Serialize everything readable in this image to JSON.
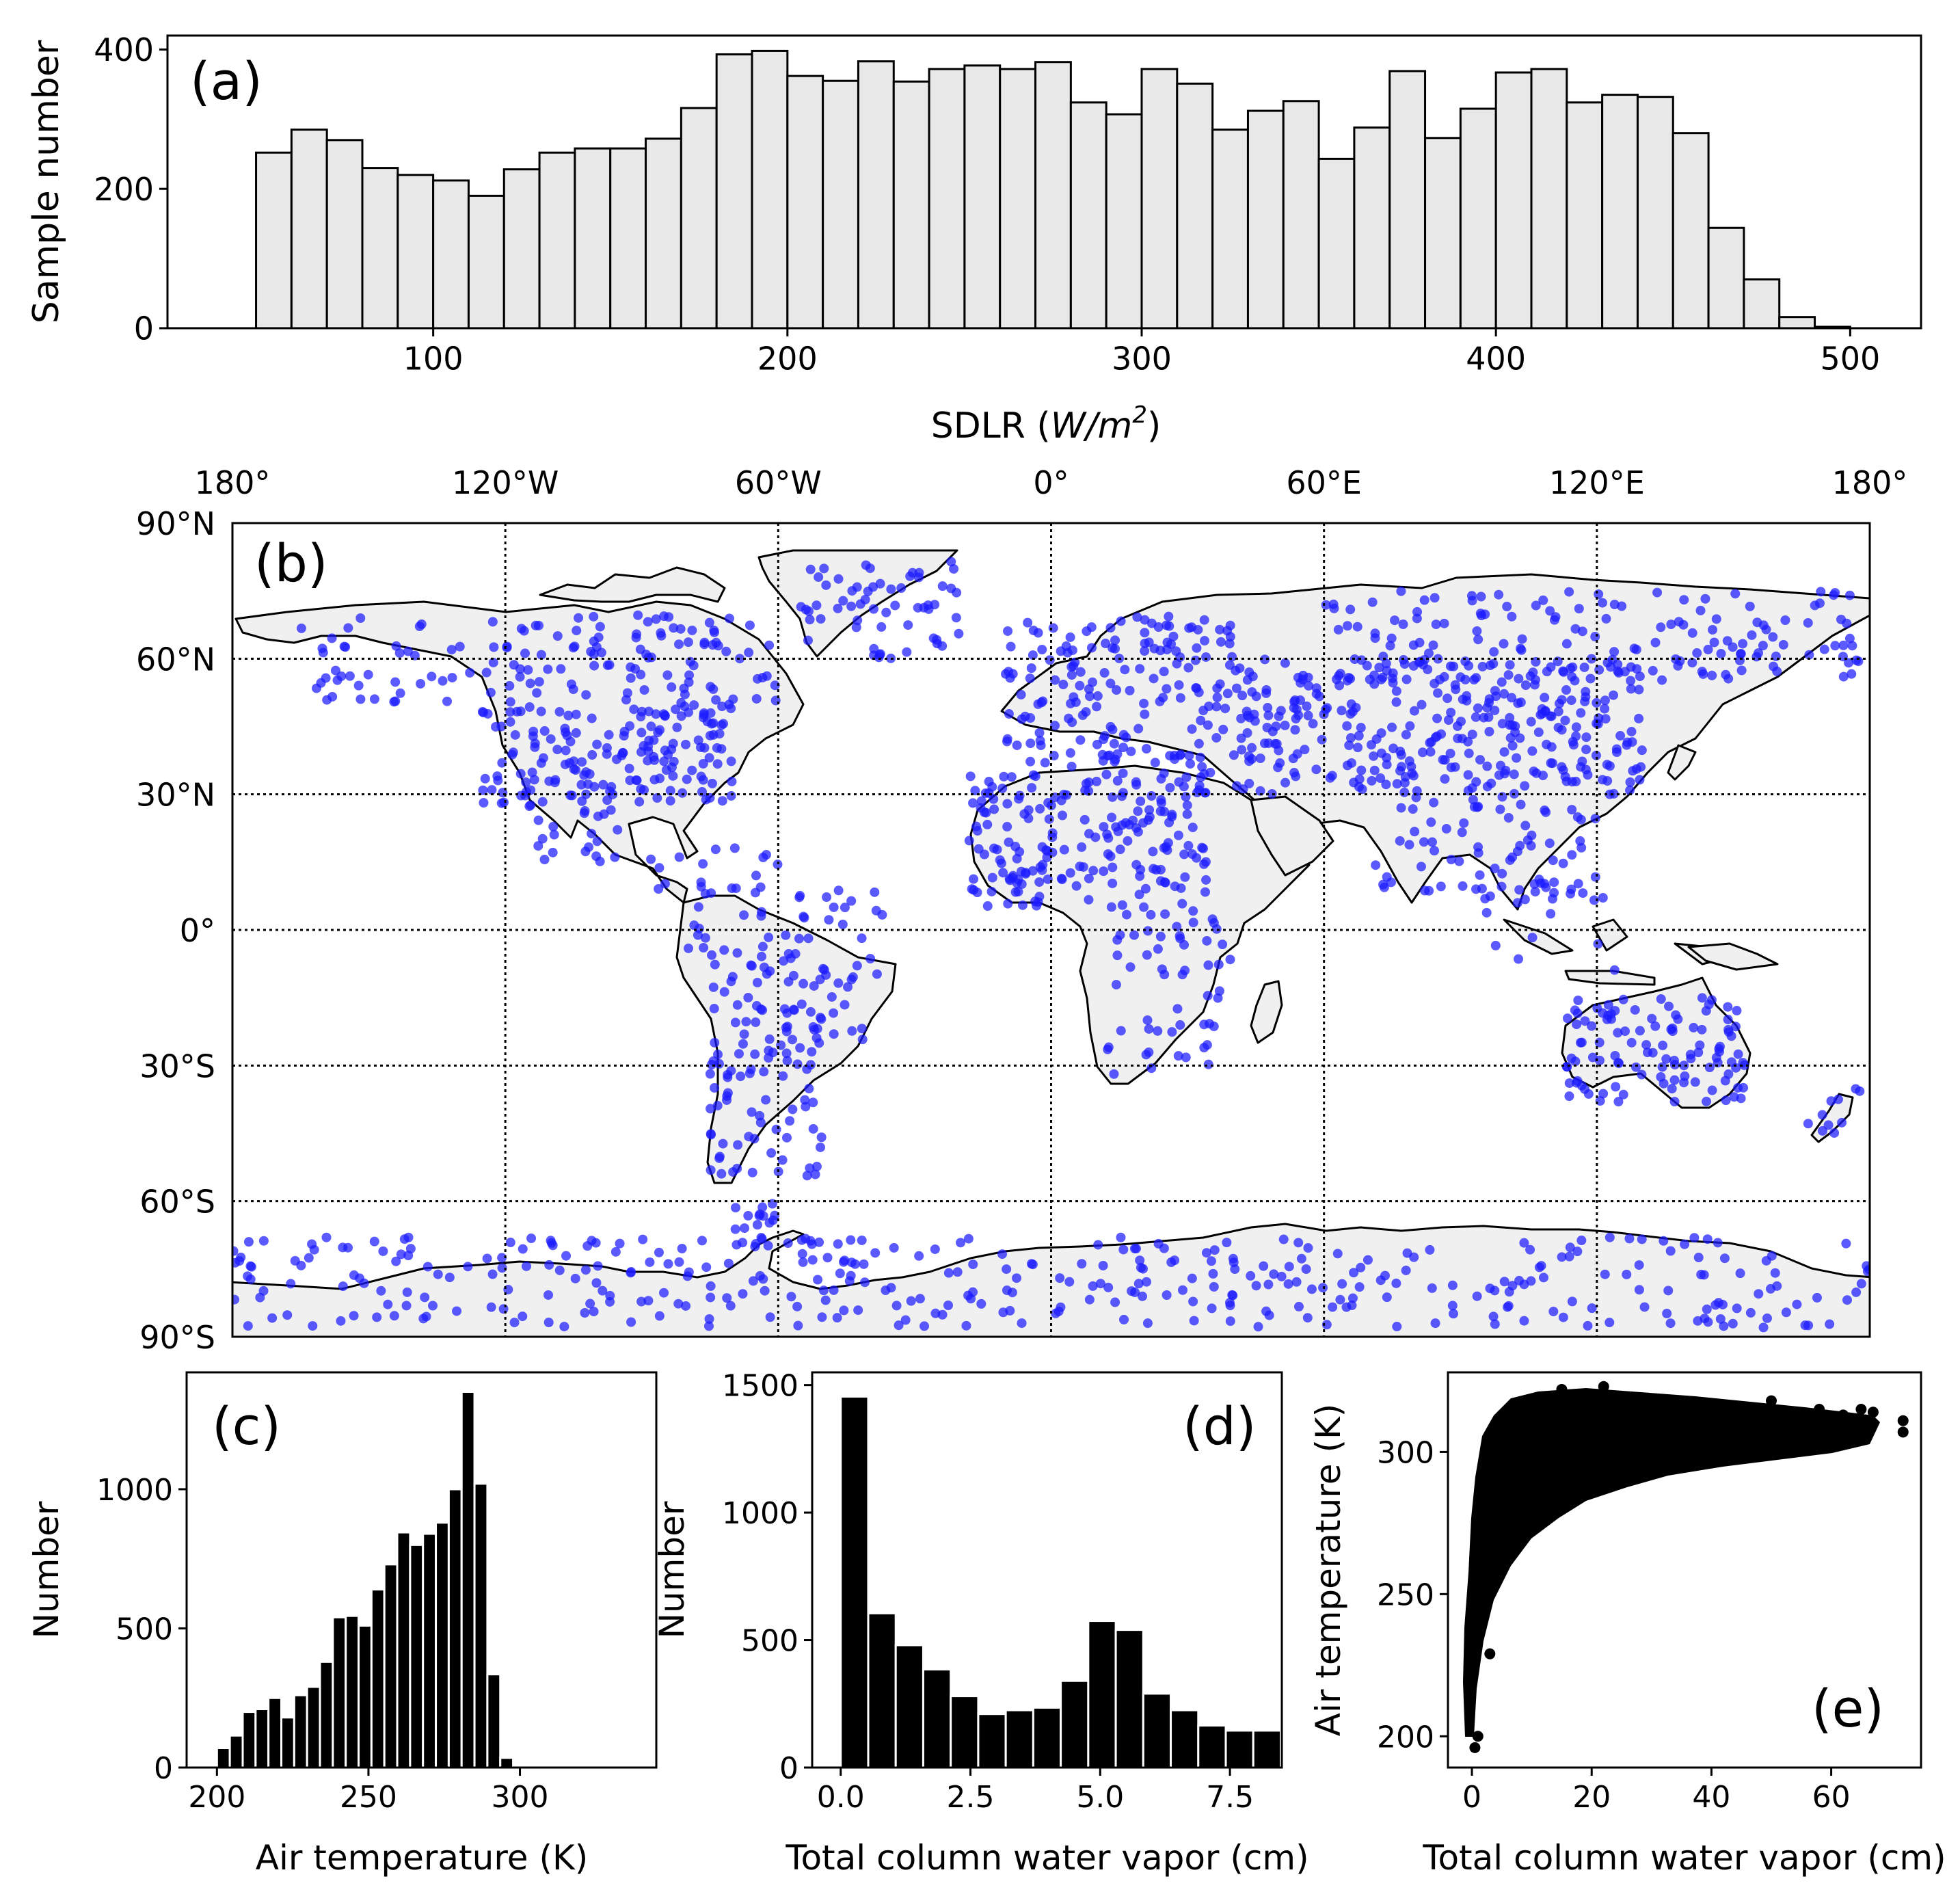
{
  "chart_data": [
    {
      "panel": "(a)",
      "type": "bar",
      "xlabel": "SDLR (W/m²)",
      "ylabel": "Sample number",
      "xlim": [
        25,
        520
      ],
      "ylim": [
        0,
        420
      ],
      "xticks": [
        100,
        200,
        300,
        400,
        500
      ],
      "yticks": [
        0,
        200,
        400
      ],
      "bin_start": 50,
      "bin_width": 10,
      "bar_color": "#e8e8e8",
      "values": [
        252,
        285,
        270,
        230,
        220,
        212,
        190,
        228,
        252,
        258,
        258,
        272,
        316,
        393,
        398,
        362,
        355,
        383,
        354,
        372,
        377,
        372,
        382,
        324,
        307,
        372,
        351,
        285,
        312,
        326,
        243,
        288,
        369,
        273,
        315,
        367,
        372,
        324,
        335,
        332,
        280,
        144,
        70,
        16,
        2
      ]
    },
    {
      "panel": "(b)",
      "type": "scatter",
      "projection": "equirectangular",
      "xticks": [
        "180°",
        "120°W",
        "60°W",
        "0°",
        "60°E",
        "120°E",
        "180°"
      ],
      "yticks": [
        "90°N",
        "60°N",
        "30°N",
        "0°",
        "30°S",
        "60°S",
        "90°S"
      ],
      "point_color": "#1a1aff",
      "land_color": "#f0f0f0",
      "grid": "dotted"
    },
    {
      "panel": "(c)",
      "type": "bar",
      "xlabel": "Air temperature (K)",
      "ylabel": "Number",
      "xlim": [
        190,
        345
      ],
      "ylim": [
        0,
        1420
      ],
      "xticks": [
        200,
        250,
        300
      ],
      "yticks": [
        0,
        500,
        1000
      ],
      "bin_start": 200,
      "bin_width": 4.25,
      "bar_color": "#000000",
      "values": [
        70,
        115,
        200,
        210,
        250,
        180,
        260,
        290,
        380,
        540,
        545,
        510,
        640,
        730,
        845,
        800,
        840,
        880,
        1000,
        1350,
        1020,
        335,
        35
      ]
    },
    {
      "panel": "(d)",
      "type": "bar",
      "xlabel": "Total column water vapor (cm)",
      "ylabel": "Number",
      "xlim": [
        -0.55,
        8.5
      ],
      "ylim": [
        0,
        1550
      ],
      "xticks": [
        0.0,
        2.5,
        5.0,
        7.5
      ],
      "yticks": [
        0,
        500,
        1000,
        1500
      ],
      "bin_start": 0,
      "bin_width": 0.53,
      "bar_color": "#000000",
      "values": [
        1455,
        605,
        480,
        385,
        280,
        210,
        225,
        235,
        340,
        575,
        540,
        290,
        225,
        165,
        145,
        145
      ]
    },
    {
      "panel": "(e)",
      "type": "scatter",
      "xlabel": "Total column water vapor (cm)",
      "ylabel": "Air temperature (K)",
      "xlim": [
        -4,
        75
      ],
      "ylim": [
        189,
        328
      ],
      "xticks": [
        0,
        20,
        40,
        60
      ],
      "yticks": [
        200,
        250,
        300
      ],
      "point_color": "#000000"
    }
  ],
  "text": {
    "a_label": "(a)",
    "a_xlabel_main": "SDLR (",
    "a_xlabel_unit": "W/m",
    "a_xlabel_sup": "2",
    "a_xlabel_end": ")",
    "a_ylabel": "Sample number",
    "b_label": "(b)",
    "c_label": "(c)",
    "c_xlabel": "Air temperature (K)",
    "c_ylabel": "Number",
    "d_label": "(d)",
    "d_xlabel": "Total column water vapor (cm)",
    "d_ylabel": "Number",
    "e_label": "(e)",
    "e_xlabel": "Total column water vapor (cm)",
    "e_ylabel": "Air temperature (K)"
  }
}
